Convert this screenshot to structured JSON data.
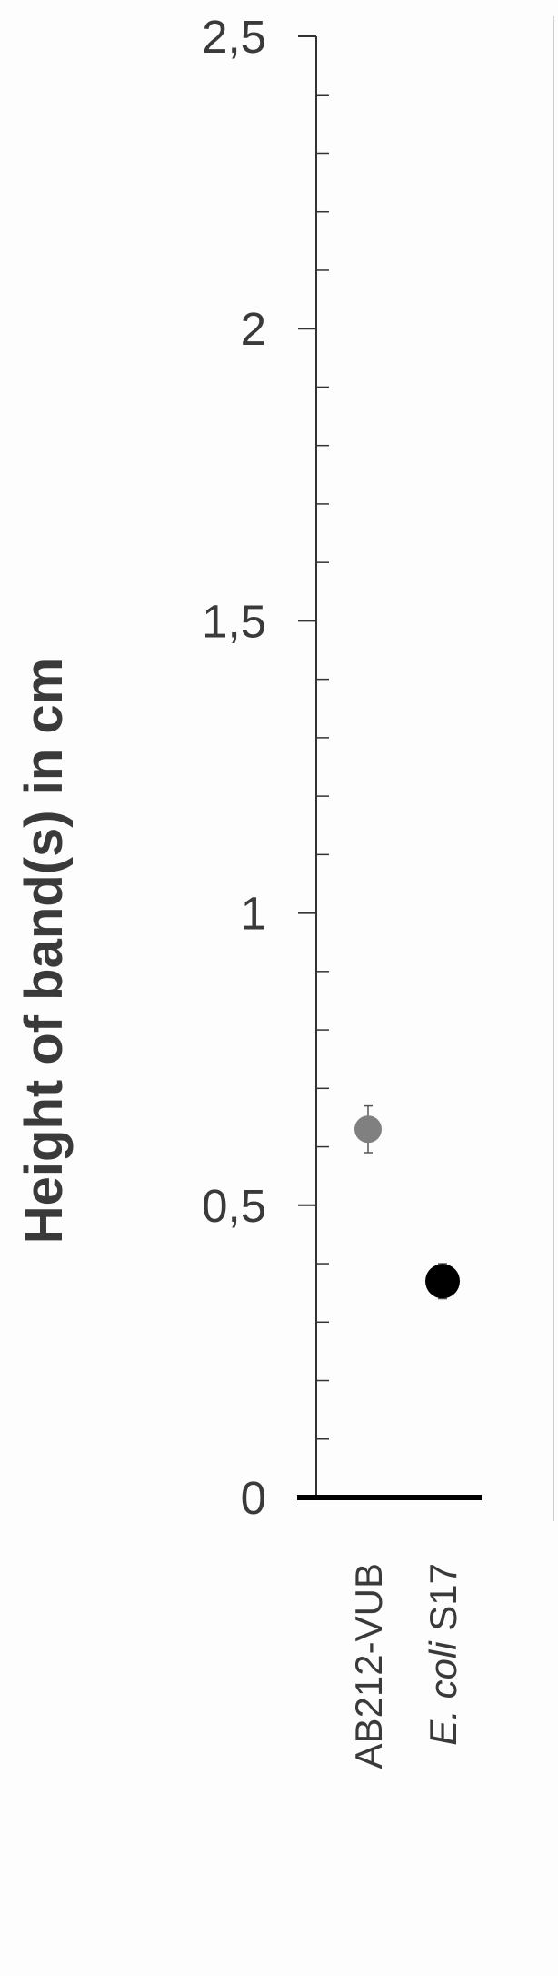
{
  "chart_data": {
    "type": "scatter",
    "ylabel": "Height of band(s) in cm",
    "ylim": [
      0,
      2.5
    ],
    "y_ticks": [
      "0",
      "0,5",
      "1",
      "1,5",
      "2",
      "2,5"
    ],
    "y_tick_values": [
      0,
      0.5,
      1,
      1.5,
      2,
      2.5
    ],
    "minor_tick_step": 0.1,
    "categories": [
      "AB212-VUB",
      "E. coli S17"
    ],
    "category_label_parts": [
      [
        {
          "text": "AB212-VUB",
          "italic": false
        }
      ],
      [
        {
          "text": "E. coli",
          "italic": true
        },
        {
          "text": " S17",
          "italic": false
        }
      ]
    ],
    "points": [
      {
        "category": "AB212-VUB",
        "y": 0.63,
        "err_low": 0.59,
        "err_high": 0.67,
        "color": "#808080"
      },
      {
        "category": "E. coli S17",
        "y": 0.37,
        "err_low": 0.34,
        "err_high": 0.4,
        "color": "#000000"
      }
    ],
    "grid": false
  }
}
